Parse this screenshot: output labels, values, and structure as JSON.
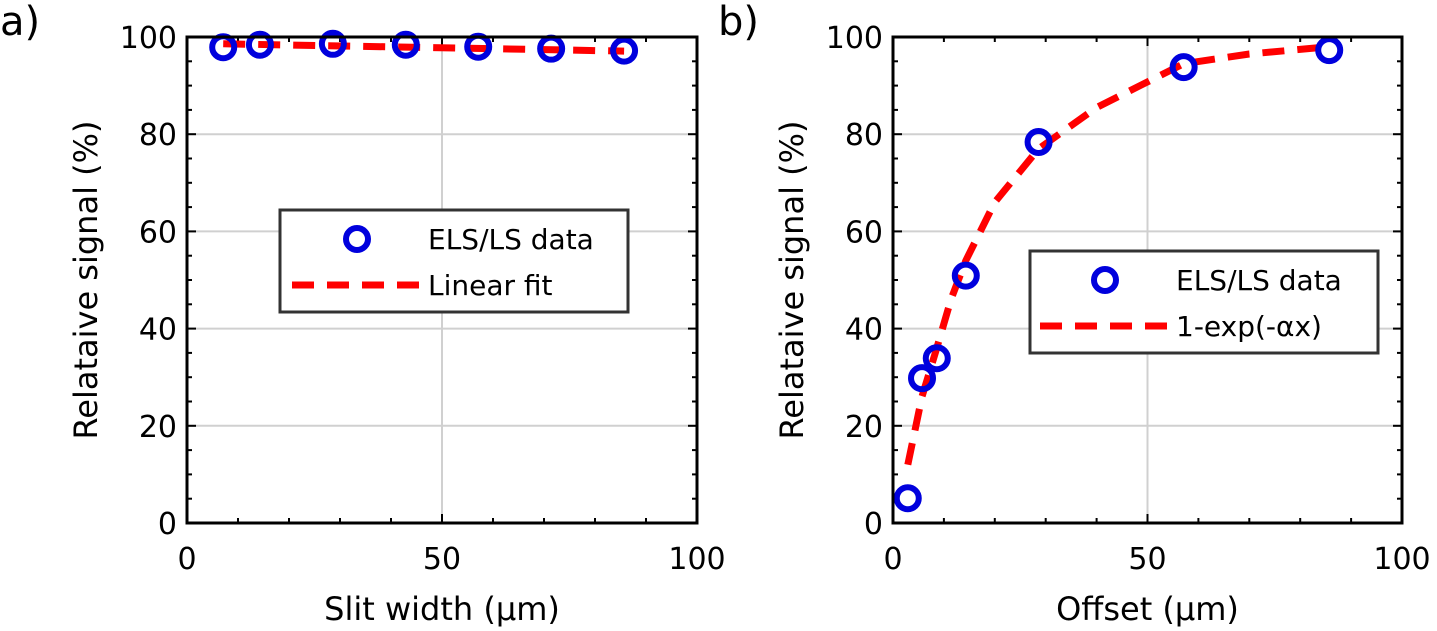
{
  "chart_data": [
    {
      "panel_label": "a)",
      "type": "scatter",
      "xlabel": "Slit width (μm)",
      "ylabel": "Relataive signal (%)",
      "xlim": [
        0,
        100
      ],
      "ylim": [
        0,
        100
      ],
      "xticks": [
        "0",
        "50",
        "100"
      ],
      "yticks": [
        "0",
        "20",
        "40",
        "60",
        "80",
        "100"
      ],
      "grid": true,
      "legend_position": "center-right",
      "series": [
        {
          "name": "ELS/LS data",
          "style": "markers",
          "color": "#0000dd",
          "x": [
            7.1,
            14.3,
            28.6,
            42.9,
            57.1,
            71.4,
            85.7
          ],
          "y": [
            97.9,
            98.4,
            98.6,
            98.4,
            98.0,
            97.6,
            97.2
          ]
        },
        {
          "name": "Linear fit",
          "style": "dashed-line",
          "color": "#ff0000",
          "x": [
            7.1,
            85.7
          ],
          "y": [
            98.6,
            97.1
          ]
        }
      ]
    },
    {
      "panel_label": "b)",
      "type": "scatter",
      "xlabel": "Offset (μm)",
      "ylabel": "Relataive signal (%)",
      "xlim": [
        0,
        100
      ],
      "ylim": [
        0,
        100
      ],
      "xticks": [
        "0",
        "50",
        "100"
      ],
      "yticks": [
        "0",
        "20",
        "40",
        "60",
        "80",
        "100"
      ],
      "grid": true,
      "legend_position": "center-right",
      "series": [
        {
          "name": "ELS/LS data",
          "style": "markers",
          "color": "#0000dd",
          "x": [
            2.9,
            5.7,
            8.6,
            14.3,
            28.6,
            57.1,
            85.7
          ],
          "y": [
            5.1,
            29.8,
            33.9,
            50.9,
            78.4,
            93.8,
            97.3
          ]
        },
        {
          "name": "1-exp(-αx)",
          "style": "dashed-line",
          "color": "#ff0000",
          "x": [
            2.9,
            5.7,
            8.6,
            11.4,
            14.3,
            20.0,
            28.6,
            40.0,
            57.1,
            70.0,
            85.7
          ],
          "y": [
            12.0,
            26.0,
            36.0,
            46.0,
            54.0,
            66.0,
            77.0,
            85.5,
            94.5,
            96.5,
            98.0
          ]
        }
      ]
    }
  ]
}
